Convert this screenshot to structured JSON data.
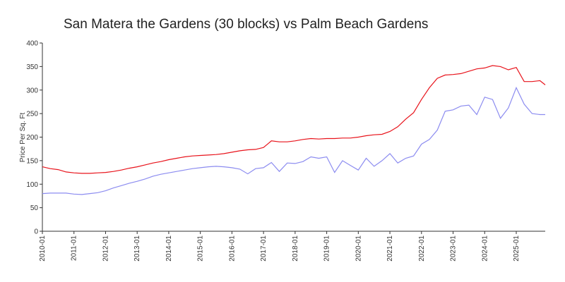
{
  "chart_data": {
    "type": "line",
    "title": "San Matera the Gardens (30 blocks) vs Palm Beach Gardens",
    "y_label": "Price Per Sq. Ft",
    "x": [
      "2010-01",
      "2010-04",
      "2010-07",
      "2010-10",
      "2011-01",
      "2011-04",
      "2011-07",
      "2011-10",
      "2012-01",
      "2012-04",
      "2012-07",
      "2012-10",
      "2013-01",
      "2013-04",
      "2013-07",
      "2013-10",
      "2014-01",
      "2014-04",
      "2014-07",
      "2014-10",
      "2015-01",
      "2015-04",
      "2015-07",
      "2015-10",
      "2016-01",
      "2016-04",
      "2016-07",
      "2016-10",
      "2017-01",
      "2017-04",
      "2017-07",
      "2017-10",
      "2018-01",
      "2018-04",
      "2018-07",
      "2018-10",
      "2019-01",
      "2019-04",
      "2019-07",
      "2019-10",
      "2020-01",
      "2020-04",
      "2020-07",
      "2020-10",
      "2021-01",
      "2021-04",
      "2021-07",
      "2021-10",
      "2022-01",
      "2022-04",
      "2022-07",
      "2022-10",
      "2023-01",
      "2023-04",
      "2023-07",
      "2023-10",
      "2024-01",
      "2024-04",
      "2024-07",
      "2024-10",
      "2025-01",
      "2025-04",
      "2025-07",
      "2025-10",
      "2025-12"
    ],
    "series": [
      {
        "name": "San Matera the Gardens (30 blocks)",
        "color": "#8c8cf0",
        "values": [
          80,
          81,
          81,
          81,
          79,
          78,
          80,
          82,
          86,
          92,
          97,
          102,
          106,
          111,
          117,
          121,
          124,
          127,
          130,
          133,
          135,
          137,
          138,
          137,
          135,
          132,
          122,
          133,
          135,
          146,
          127,
          145,
          144,
          148,
          158,
          155,
          158,
          125,
          150,
          140,
          130,
          155,
          138,
          150,
          165,
          145,
          155,
          160,
          185,
          195,
          215,
          255,
          258,
          266,
          268,
          248,
          285,
          280,
          240,
          262,
          305,
          270,
          250,
          248,
          248
        ]
      },
      {
        "name": "Palm Beach Gardens",
        "color": "#e8131b",
        "values": [
          137,
          133,
          131,
          126,
          124,
          123,
          123,
          124,
          125,
          127,
          130,
          134,
          137,
          141,
          145,
          148,
          152,
          155,
          158,
          160,
          161,
          162,
          163,
          165,
          168,
          171,
          173,
          174,
          178,
          192,
          190,
          190,
          192,
          195,
          197,
          196,
          197,
          197,
          198,
          198,
          200,
          203,
          205,
          206,
          212,
          222,
          238,
          252,
          280,
          305,
          325,
          332,
          333,
          335,
          340,
          345,
          347,
          352,
          350,
          343,
          348,
          318,
          318,
          320,
          311
        ]
      }
    ],
    "xlim": [
      "2010-01",
      "2025-12"
    ],
    "xticks": [
      "2010-01",
      "2011-01",
      "2012-01",
      "2013-01",
      "2014-01",
      "2015-01",
      "2016-01",
      "2017-01",
      "2018-01",
      "2019-01",
      "2020-01",
      "2021-01",
      "2022-01",
      "2023-01",
      "2024-01",
      "2025-01"
    ],
    "ylim": [
      0,
      400
    ],
    "yticks": [
      0,
      50,
      100,
      150,
      200,
      250,
      300,
      350,
      400
    ]
  }
}
